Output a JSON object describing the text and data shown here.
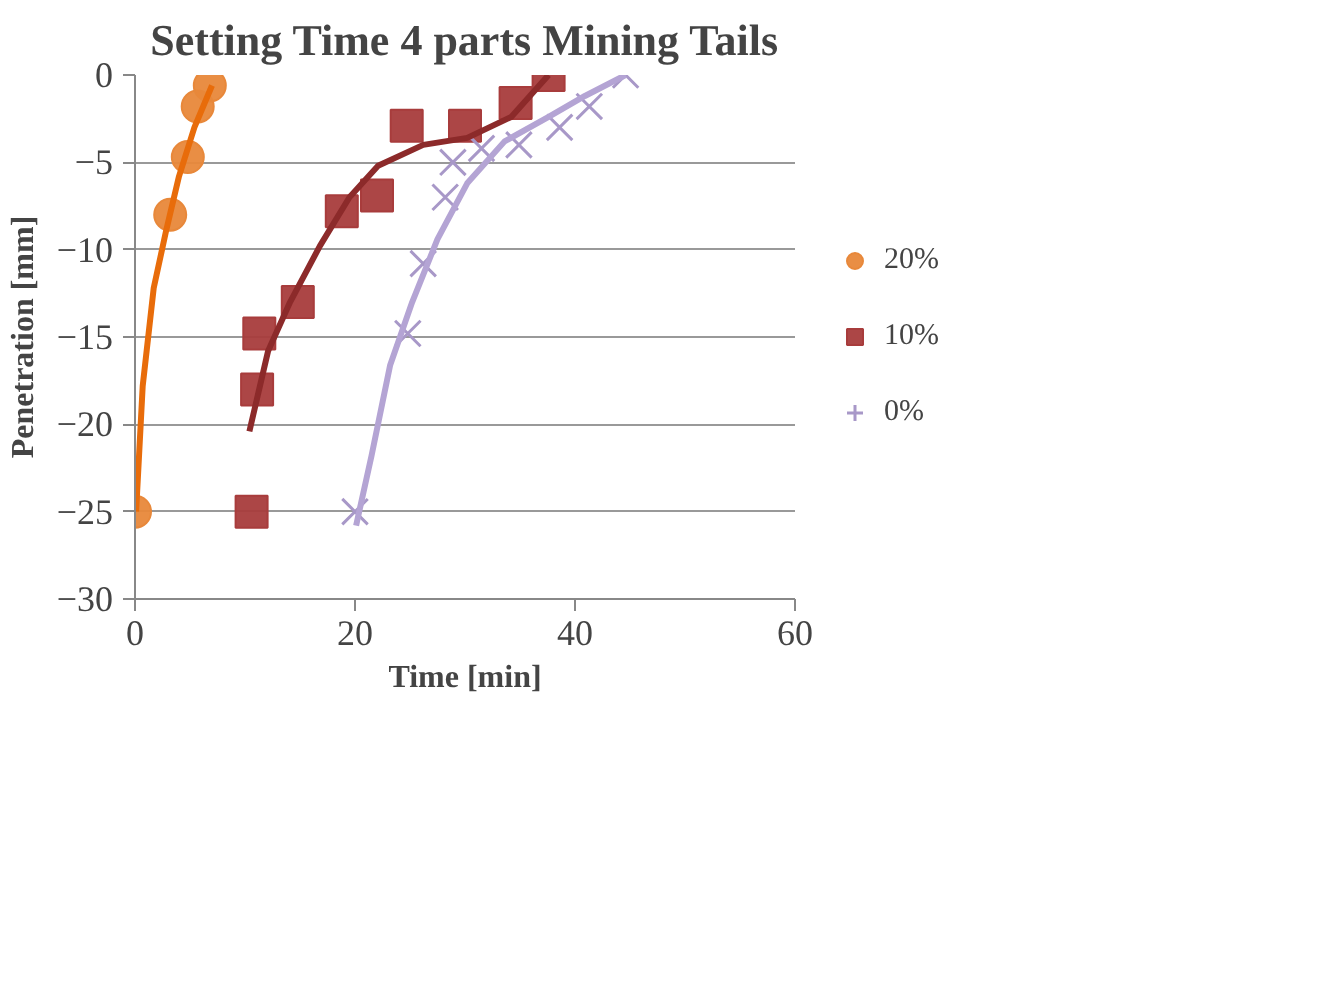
{
  "chart_data": {
    "type": "scatter",
    "title": "Setting Time 4 parts Mining Tails",
    "xlabel": "Time [min]",
    "ylabel": "Penetration [mm]",
    "xlim": [
      0,
      60
    ],
    "xticks": [
      0,
      20,
      40,
      60
    ],
    "ylim": [
      -30,
      0
    ],
    "yticks": [
      -30,
      -25,
      -20,
      -15,
      -10,
      -5,
      0
    ],
    "grid": "y",
    "legend": "right",
    "series": [
      {
        "name": "20%",
        "color": "#e8883a",
        "marker": "circle",
        "x": [
          0,
          3.2,
          4.8,
          5.7,
          6.8
        ],
        "values": [
          -25,
          -8.0,
          -4.7,
          -1.8,
          -0.6
        ]
      },
      {
        "name": "10%",
        "color": "#a83c3c",
        "marker": "square",
        "x": [
          10.6,
          11.1,
          11.3,
          14.8,
          18.8,
          22,
          24.7,
          30,
          34.6,
          37.6
        ],
        "values": [
          -25,
          -18,
          -14.8,
          -13,
          -7.8,
          -6.9,
          -2.9,
          -2.9,
          -1.6,
          0
        ]
      },
      {
        "name": "0%",
        "color": "#a898c8",
        "marker": "cross",
        "x": [
          20,
          24.8,
          26.2,
          28.2,
          28.9,
          31.5,
          34.9,
          38.6,
          41.3,
          44.6
        ],
        "values": [
          -25,
          -14.8,
          -10.8,
          -7,
          -5,
          -4.2,
          -4,
          -3,
          -1.8,
          0
        ]
      },
      {
        "type": "line",
        "color": "#e86c0a",
        "x": [
          0.1,
          0.7,
          1.7,
          2.8,
          4,
          5.4,
          7
        ],
        "values": [
          -25,
          -17.8,
          -12.2,
          -9,
          -5.8,
          -3,
          -0.6
        ]
      },
      {
        "type": "line",
        "color": "#8c2a2a",
        "x": [
          10.4,
          12.1,
          14.1,
          16.8,
          19.5,
          22.1,
          26.2,
          30.2,
          34.2,
          37.6
        ],
        "values": [
          -20.4,
          -15.8,
          -13,
          -9.8,
          -7,
          -5.2,
          -4,
          -3.6,
          -2.4,
          0
        ]
      },
      {
        "type": "line",
        "color": "#b4a4d4",
        "x": [
          20.1,
          21.5,
          23.2,
          25.2,
          27.5,
          30.2,
          33.6,
          37.6,
          40.9,
          44.6
        ],
        "values": [
          -25.8,
          -21.8,
          -16.6,
          -13,
          -9.4,
          -6.2,
          -3.8,
          -2.4,
          -1.2,
          0
        ]
      }
    ]
  }
}
